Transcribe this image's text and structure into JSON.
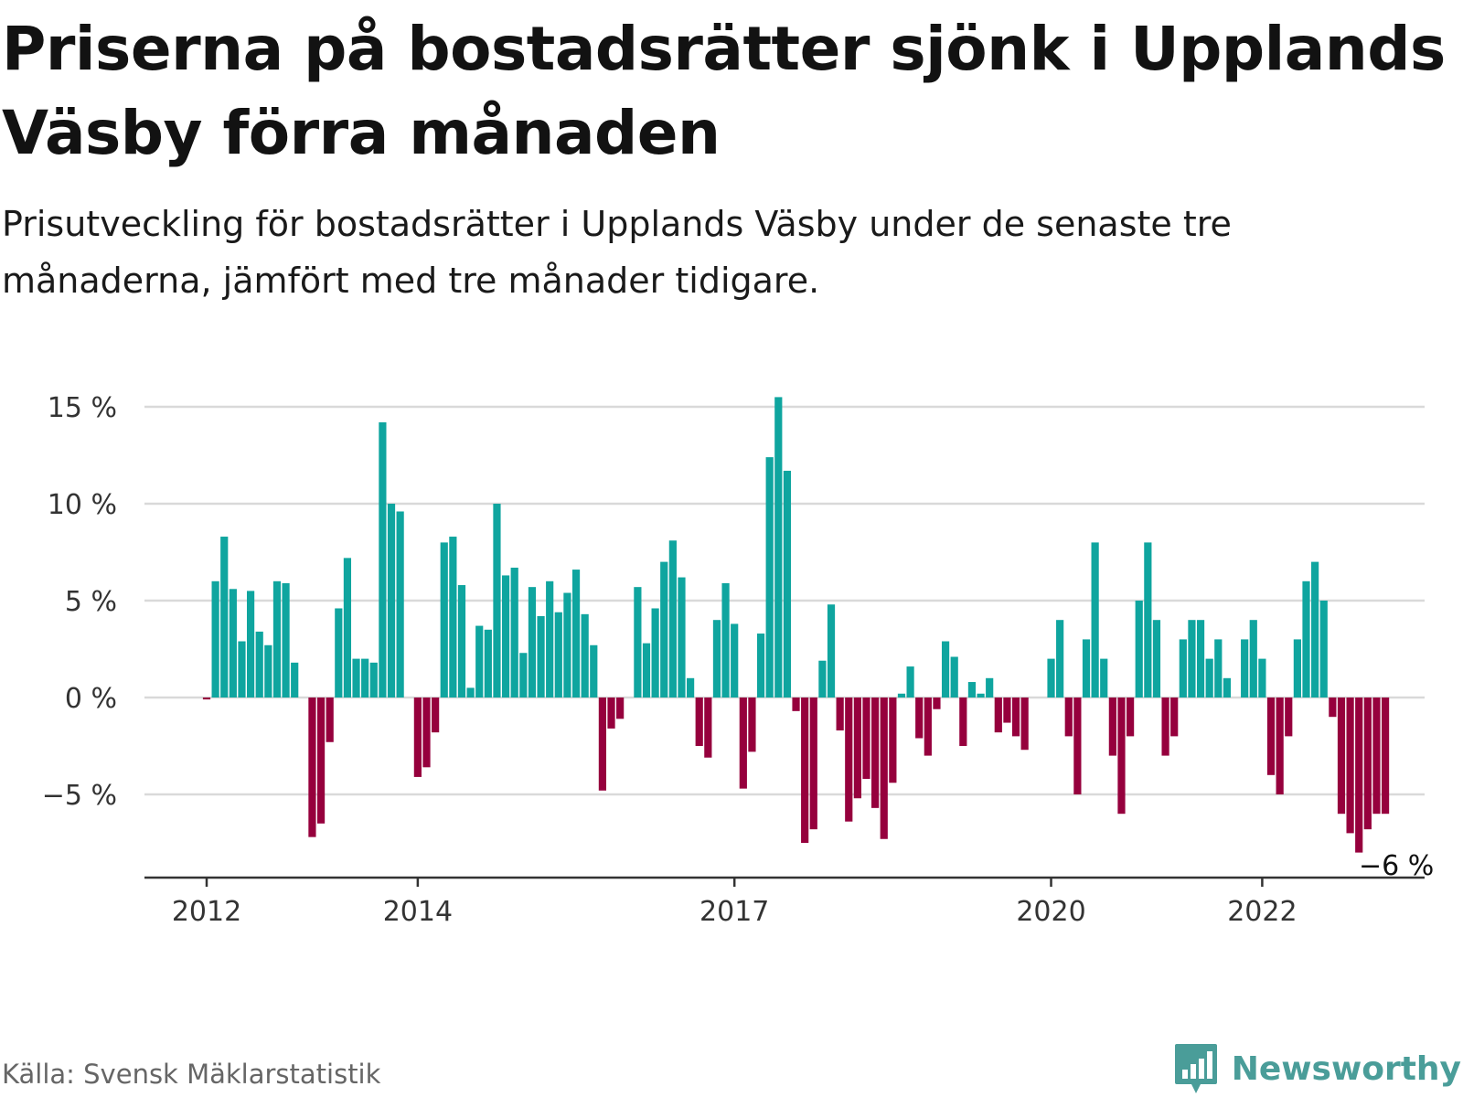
{
  "chart_data": {
    "type": "bar",
    "title": "Priserna på bostadsrätter sjönk i Upplands Väsby förra månaden",
    "subtitle": "Prisutveckling för bostadsrätter i Upplands Väsby under de senaste tre månaderna, jämfört med tre månader tidigare.",
    "xlabel": "",
    "ylabel": "",
    "ylim": [
      -9,
      15.5
    ],
    "y_ticks": [
      {
        "value": 15,
        "label": "15 %"
      },
      {
        "value": 10,
        "label": "10 %"
      },
      {
        "value": 5,
        "label": "5 %"
      },
      {
        "value": 0,
        "label": "0 %"
      },
      {
        "value": -5,
        "label": "−5 %"
      }
    ],
    "x_ticks": [
      {
        "index": 0,
        "label": "2012"
      },
      {
        "index": 24,
        "label": "2014"
      },
      {
        "index": 60,
        "label": "2017"
      },
      {
        "index": 96,
        "label": "2020"
      },
      {
        "index": 120,
        "label": "2022"
      }
    ],
    "grid": true,
    "positive_color": "#0fa59f",
    "negative_color": "#96003d",
    "end_label": "−6 %",
    "values": [
      -0.1,
      6.0,
      8.3,
      5.6,
      2.9,
      5.5,
      3.4,
      2.7,
      6.0,
      5.9,
      1.8,
      0,
      -7.2,
      -6.5,
      -2.3,
      4.6,
      7.2,
      2.0,
      2.0,
      1.8,
      14.2,
      10.0,
      9.6,
      0,
      -4.1,
      -3.6,
      -1.8,
      8.0,
      8.3,
      5.8,
      0.5,
      3.7,
      3.5,
      10.0,
      6.3,
      6.7,
      2.3,
      5.7,
      4.2,
      6.0,
      4.4,
      5.4,
      6.6,
      4.3,
      2.7,
      -4.8,
      -1.6,
      -1.1,
      0,
      5.7,
      2.8,
      4.6,
      7.0,
      8.1,
      6.2,
      1.0,
      -2.5,
      -3.1,
      4.0,
      5.9,
      3.8,
      -4.7,
      -2.8,
      3.3,
      12.4,
      15.5,
      11.7,
      -0.7,
      -7.5,
      -6.8,
      1.9,
      4.8,
      -1.7,
      -6.4,
      -5.2,
      -4.2,
      -5.7,
      -7.3,
      -4.4,
      0.2,
      1.6,
      -2.1,
      -3.0,
      -0.6,
      2.9,
      2.1,
      -2.5,
      0.8,
      0.2,
      1.0,
      -1.8,
      -1.3,
      -2.0,
      -2.7,
      0,
      0,
      2.0,
      4.0,
      -2.0,
      -5.0,
      3.0,
      8.0,
      2.0,
      -3.0,
      -6.0,
      -2.0,
      5.0,
      8.0,
      4.0,
      -3.0,
      -2.0,
      3.0,
      4.0,
      4.0,
      2.0,
      3.0,
      1.0,
      0,
      3.0,
      4.0,
      2.0,
      -4.0,
      -5.0,
      -2.0,
      3.0,
      6.0,
      7.0,
      5.0,
      -1.0,
      -6.0,
      -7.0,
      -8.0,
      -6.8,
      -6.0,
      -6.0
    ]
  },
  "footer": {
    "source": "Källa: Svensk Mäklarstatistik",
    "brand": "Newsworthy"
  }
}
